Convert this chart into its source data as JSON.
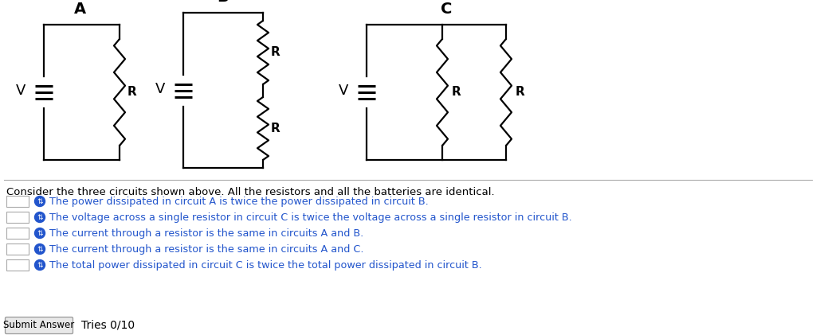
{
  "bg_color": "#ffffff",
  "circuit_A_label": "A",
  "circuit_B_label": "B",
  "circuit_C_label": "C",
  "V_label": "V",
  "R_label": "R",
  "description": "Consider the three circuits shown above. All the resistors and all the batteries are identical.",
  "options": [
    "The power dissipated in circuit A is twice the power dissipated in circuit B.",
    "The voltage across a single resistor in circuit C is twice the voltage across a single resistor in circuit B.",
    "The current through a resistor is the same in circuits A and B.",
    "The current through a resistor is the same in circuits A and C.",
    "The total power dissipated in circuit C is twice the total power dissipated in circuit B."
  ],
  "submit_text": "Submit Answer",
  "tries_text": "Tries 0/10",
  "text_color_blue": "#2255cc",
  "text_color_black": "#000000",
  "circuit_line_color": "#000000",
  "checkbox_edge_color": "#aaaaaa",
  "divider_color": "#aaaaaa",
  "button_face_color": "#e8e8e8",
  "button_edge_color": "#999999"
}
